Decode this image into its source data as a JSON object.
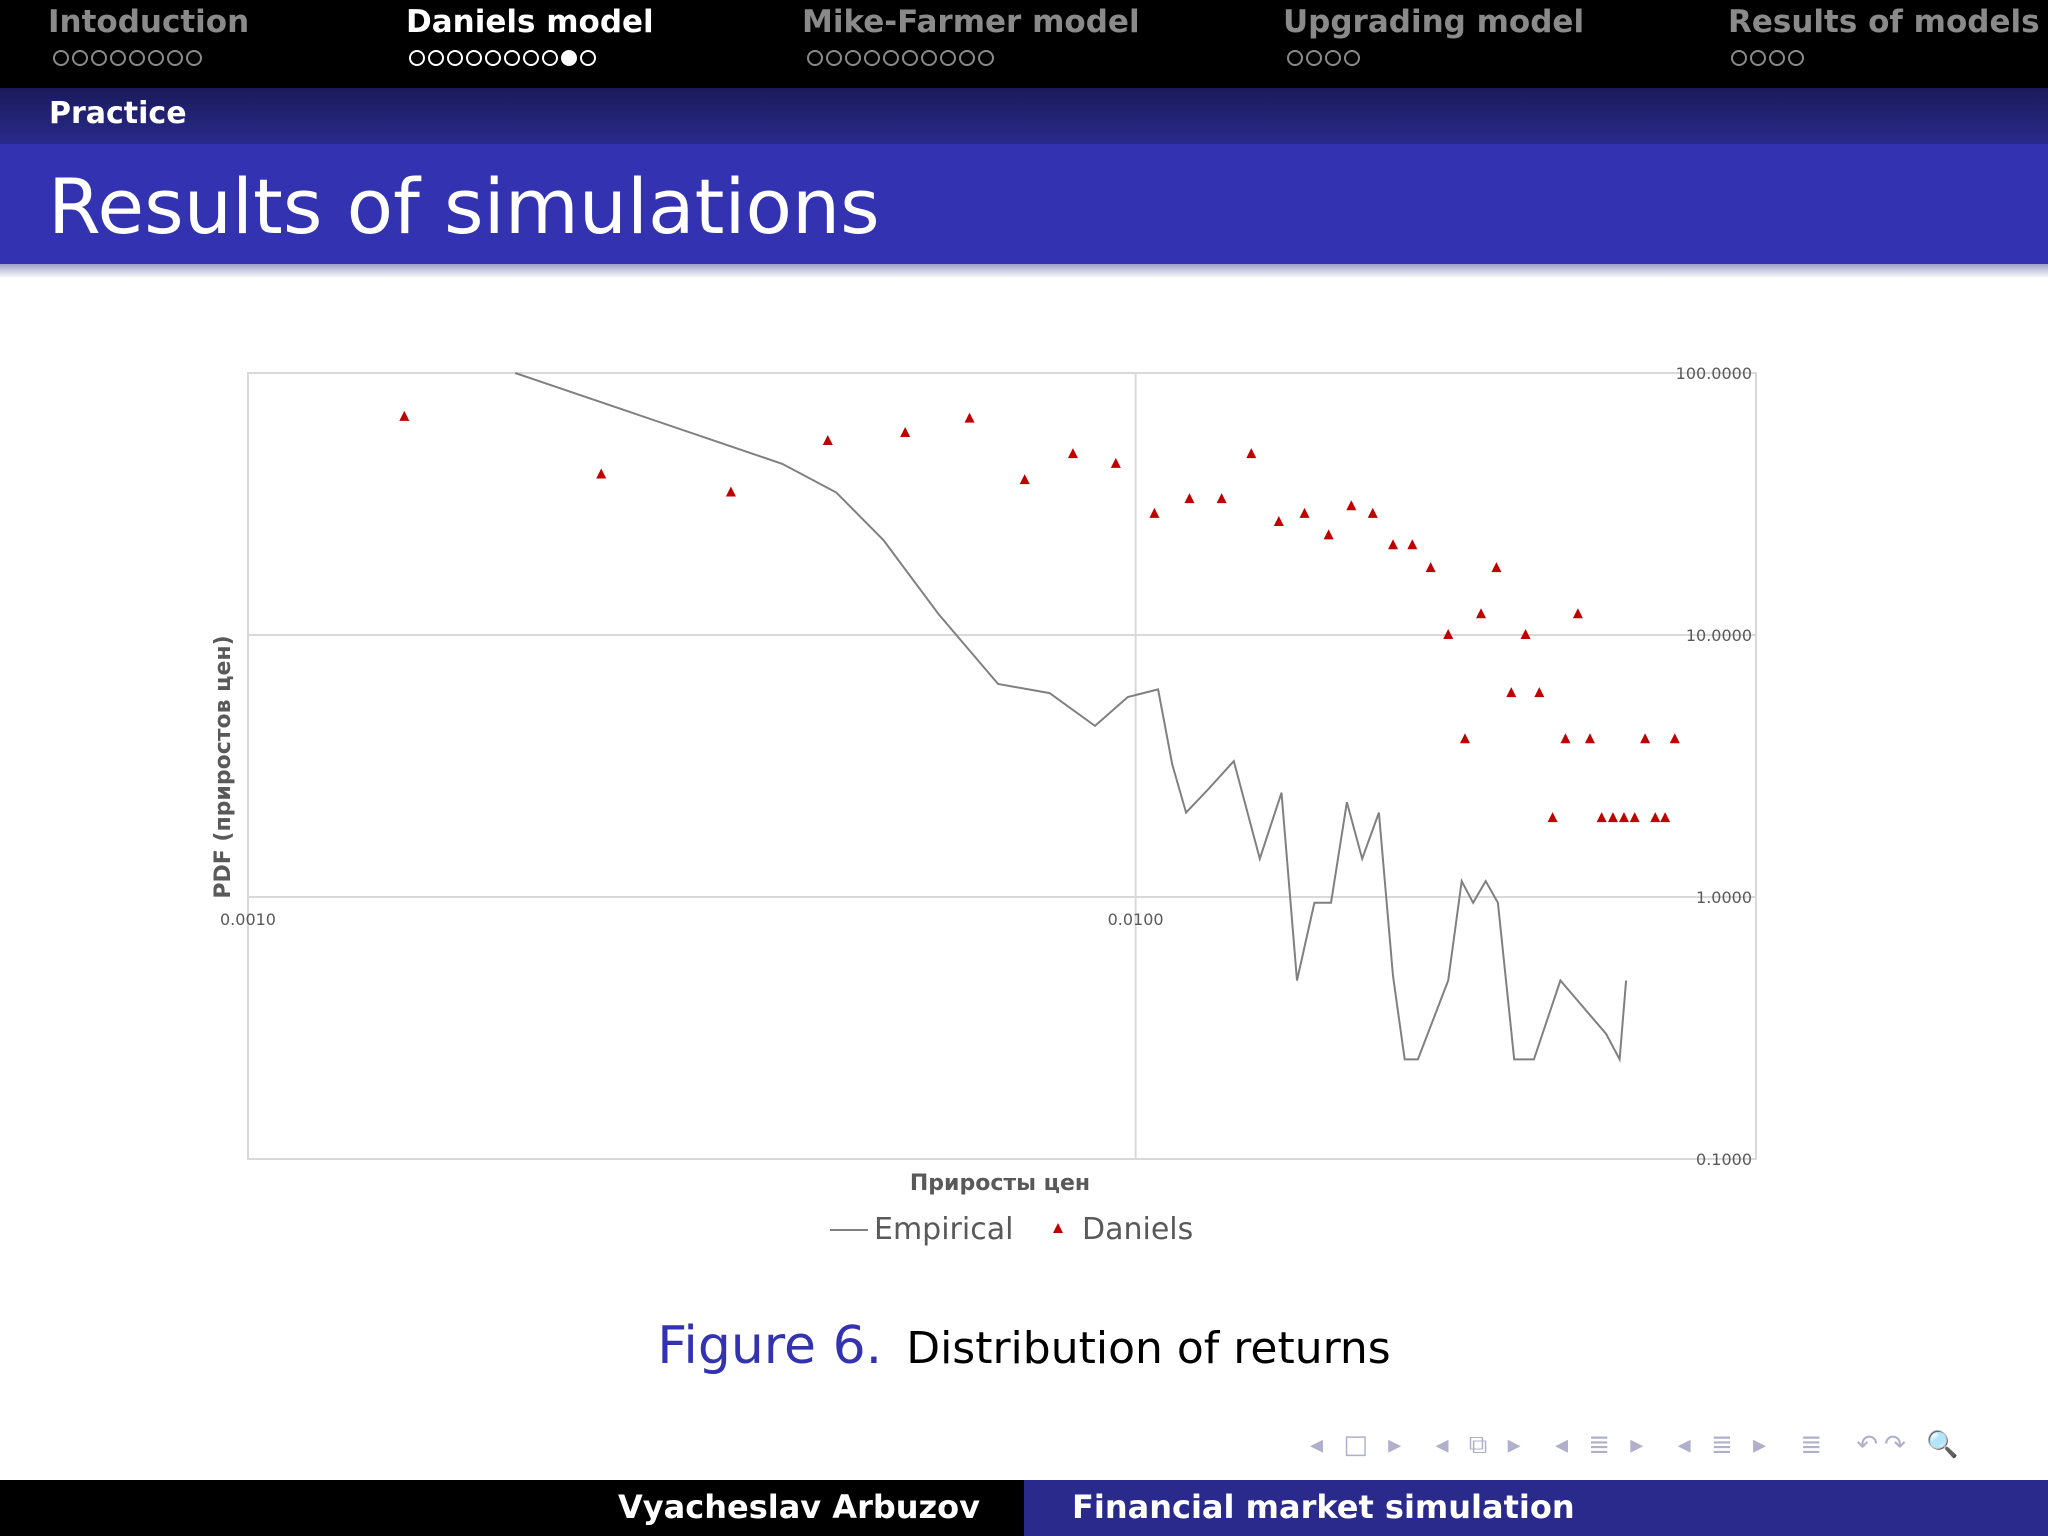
{
  "nav": {
    "sections": [
      {
        "label": "Intoduction",
        "dots": 8,
        "filled": [],
        "active": false
      },
      {
        "label": "Daniels model",
        "dots": 10,
        "filled": [
          8
        ],
        "active": true
      },
      {
        "label": "Mike-Farmer model",
        "dots": 10,
        "filled": [],
        "active": false
      },
      {
        "label": "Upgrading model",
        "dots": 4,
        "filled": [],
        "active": false
      },
      {
        "label": "Results of models",
        "dots": 4,
        "filled": [],
        "active": false
      }
    ]
  },
  "subsection": "Practice",
  "title": "Results of simulations",
  "chart_data": {
    "type": "scatter",
    "x_scale": "log",
    "y_scale": "log",
    "xlim": [
      0.001,
      0.05
    ],
    "ylim": [
      0.1,
      100
    ],
    "x_ticks": [
      "0.0010",
      "0.0100"
    ],
    "y_ticks": [
      "100.0000",
      "10.0000",
      "1.0000",
      "0.1000"
    ],
    "xlabel": "Приросты цен",
    "ylabel": "PDF (приростов цен)",
    "grid": true,
    "legend_position": "bottom",
    "series": [
      {
        "name": "Empirical",
        "style": "line",
        "color": "#808080",
        "points": [
          [
            0.002,
            100.0
          ],
          [
            0.004,
            45.0
          ],
          [
            0.0046,
            35.0
          ],
          [
            0.0052,
            23.0
          ],
          [
            0.006,
            12.0
          ],
          [
            0.007,
            6.5
          ],
          [
            0.008,
            6.0
          ],
          [
            0.009,
            4.5
          ],
          [
            0.0098,
            5.8
          ],
          [
            0.0106,
            6.2
          ],
          [
            0.011,
            3.2
          ],
          [
            0.0114,
            2.1
          ],
          [
            0.0121,
            2.6
          ],
          [
            0.0129,
            3.3
          ],
          [
            0.0138,
            1.4
          ],
          [
            0.0146,
            2.5
          ],
          [
            0.0152,
            0.48
          ],
          [
            0.0159,
            0.95
          ],
          [
            0.0166,
            0.95
          ],
          [
            0.0173,
            2.3
          ],
          [
            0.018,
            1.4
          ],
          [
            0.0188,
            2.1
          ],
          [
            0.0195,
            0.5
          ],
          [
            0.0201,
            0.24
          ],
          [
            0.0208,
            0.24
          ],
          [
            0.0225,
            0.48
          ],
          [
            0.0233,
            1.15
          ],
          [
            0.024,
            0.95
          ],
          [
            0.0248,
            1.15
          ],
          [
            0.0256,
            0.95
          ],
          [
            0.0267,
            0.24
          ],
          [
            0.0281,
            0.24
          ],
          [
            0.0301,
            0.48
          ],
          [
            0.0339,
            0.3
          ],
          [
            0.0351,
            0.24
          ],
          [
            0.0357,
            0.48
          ]
        ]
      },
      {
        "name": "Daniels",
        "style": "marker-triangle",
        "color": "#c00000",
        "points": [
          [
            0.0015,
            68
          ],
          [
            0.0025,
            41
          ],
          [
            0.0035,
            35
          ],
          [
            0.0045,
            55
          ],
          [
            0.0055,
            59
          ],
          [
            0.0065,
            67
          ],
          [
            0.0075,
            39
          ],
          [
            0.0085,
            49
          ],
          [
            0.0095,
            45
          ],
          [
            0.0105,
            29
          ],
          [
            0.0115,
            33
          ],
          [
            0.0125,
            33
          ],
          [
            0.0135,
            49
          ],
          [
            0.0145,
            27
          ],
          [
            0.0155,
            29
          ],
          [
            0.0165,
            24
          ],
          [
            0.0175,
            31
          ],
          [
            0.0185,
            29
          ],
          [
            0.0195,
            22
          ],
          [
            0.0205,
            22
          ],
          [
            0.0215,
            18
          ],
          [
            0.0225,
            10
          ],
          [
            0.0235,
            4
          ],
          [
            0.0245,
            12
          ],
          [
            0.0255,
            18
          ],
          [
            0.0265,
            6
          ],
          [
            0.0275,
            10
          ],
          [
            0.0285,
            6
          ],
          [
            0.0295,
            2
          ],
          [
            0.0305,
            4
          ],
          [
            0.0315,
            12
          ],
          [
            0.0325,
            4
          ],
          [
            0.0335,
            2
          ],
          [
            0.0345,
            2
          ],
          [
            0.0355,
            2
          ],
          [
            0.0365,
            2
          ],
          [
            0.0375,
            4
          ],
          [
            0.0385,
            2
          ],
          [
            0.0395,
            2
          ],
          [
            0.0405,
            4
          ]
        ]
      }
    ]
  },
  "caption": {
    "label": "Figure 6.",
    "text": "Distribution of returns"
  },
  "footer": {
    "author": "Vyacheslav Arbuzov",
    "talk": "Financial market simulation"
  },
  "nav_symbols": [
    "◂ □ ▸",
    "◂ ⧉ ▸",
    "◂ ≣ ▸",
    "◂ ≣ ▸",
    "≣",
    "↶↷ 🔍"
  ]
}
